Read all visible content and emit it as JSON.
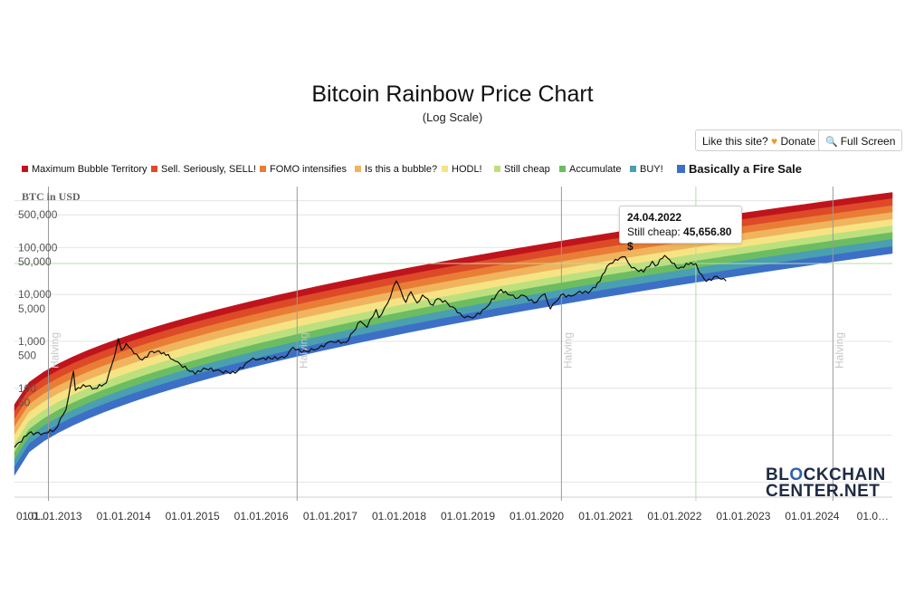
{
  "chart_data": {
    "type": "line",
    "title": "Bitcoin Rainbow Price Chart",
    "subtitle": "(Log Scale)",
    "ylabel": "BTC in USD",
    "y_scale": "log",
    "ylim": [
      0.5,
      2000000
    ],
    "xlim": [
      "2012-06-01",
      "2025-03-01"
    ],
    "grid": true,
    "legend_position": "top",
    "y_tick_labels": [
      "500,000",
      "100,000",
      "50,000",
      "10,000",
      "5,000",
      "1,000",
      "500",
      "100",
      "50"
    ],
    "y_tick_values": [
      500000,
      100000,
      50000,
      10000,
      5000,
      1000,
      500,
      100,
      50
    ],
    "y_gridlines": [
      1000000,
      500000,
      100000,
      10000,
      1000,
      100,
      10,
      1
    ],
    "x_tick_labels": [
      "01.0…",
      "01.01.2013",
      "01.01.2014",
      "01.01.2015",
      "01.01.2016",
      "01.01.2017",
      "01.01.2018",
      "01.01.2019",
      "01.01.2020",
      "01.01.2021",
      "01.01.2022",
      "01.01.2023",
      "01.01.2024",
      "01.0…"
    ],
    "x_tick_dates": [
      "2012-06-15",
      "2013-01-01",
      "2014-01-01",
      "2015-01-01",
      "2016-01-01",
      "2017-01-01",
      "2018-01-01",
      "2019-01-01",
      "2020-01-01",
      "2021-01-01",
      "2022-01-01",
      "2023-01-01",
      "2024-01-01",
      "2025-01-01"
    ],
    "halvings": [
      {
        "label": "Halving",
        "date": "2012-11-28"
      },
      {
        "label": "Halving",
        "date": "2016-07-09"
      },
      {
        "label": "Halving",
        "date": "2020-05-11"
      },
      {
        "label": "Halving",
        "date": "2024-04-20"
      }
    ],
    "bands": [
      {
        "name": "Maximum Bubble Territory",
        "color": "#c0141c",
        "top_value_2012": 45,
        "top_value_2025": 1500000
      },
      {
        "name": "Sell. Seriously, SELL!",
        "color": "#dd4a28",
        "top_value_2012": 32,
        "top_value_2025": 1100000
      },
      {
        "name": "FOMO intensifies",
        "color": "#ea7d36",
        "top_value_2012": 22,
        "top_value_2025": 780000
      },
      {
        "name": "Is this a bubble?",
        "color": "#f0b45e",
        "top_value_2012": 15,
        "top_value_2025": 560000
      },
      {
        "name": "HODL!",
        "color": "#f6e484",
        "top_value_2012": 10,
        "top_value_2025": 400000
      },
      {
        "name": "Still cheap",
        "color": "#bde07e",
        "top_value_2012": 6.5,
        "top_value_2025": 290000
      },
      {
        "name": "Accumulate",
        "color": "#6cbd62",
        "top_value_2012": 4.3,
        "top_value_2025": 210000
      },
      {
        "name": "BUY!",
        "color": "#4a9fb1",
        "top_value_2012": 3.0,
        "top_value_2025": 150000
      },
      {
        "name": "Basically a Fire Sale",
        "color": "#3c6fc6",
        "top_value_2012": 2.1,
        "top_value_2025": 105000,
        "bottom_value_2012": 1.4,
        "bottom_value_2025": 75000
      }
    ],
    "series": [
      {
        "name": "BTC price",
        "color": "#111111",
        "points": [
          [
            "2012-06-01",
            5.5
          ],
          [
            "2012-08-15",
            11
          ],
          [
            "2012-11-01",
            11
          ],
          [
            "2013-01-01",
            13
          ],
          [
            "2013-03-01",
            35
          ],
          [
            "2013-04-10",
            230
          ],
          [
            "2013-04-20",
            90
          ],
          [
            "2013-06-01",
            120
          ],
          [
            "2013-08-01",
            100
          ],
          [
            "2013-10-01",
            130
          ],
          [
            "2013-11-15",
            500
          ],
          [
            "2013-12-04",
            1150
          ],
          [
            "2013-12-20",
            650
          ],
          [
            "2014-01-15",
            900
          ],
          [
            "2014-02-25",
            550
          ],
          [
            "2014-04-10",
            400
          ],
          [
            "2014-06-01",
            620
          ],
          [
            "2014-08-01",
            580
          ],
          [
            "2014-10-01",
            380
          ],
          [
            "2015-01-15",
            200
          ],
          [
            "2015-03-01",
            270
          ],
          [
            "2015-06-01",
            230
          ],
          [
            "2015-08-15",
            210
          ],
          [
            "2015-11-05",
            400
          ],
          [
            "2016-01-01",
            430
          ],
          [
            "2016-05-01",
            450
          ],
          [
            "2016-06-17",
            750
          ],
          [
            "2016-08-01",
            580
          ],
          [
            "2016-11-01",
            720
          ],
          [
            "2017-01-05",
            1000
          ],
          [
            "2017-03-25",
            950
          ],
          [
            "2017-06-10",
            2700
          ],
          [
            "2017-07-15",
            2000
          ],
          [
            "2017-09-01",
            4800
          ],
          [
            "2017-09-15",
            3200
          ],
          [
            "2017-11-01",
            6500
          ],
          [
            "2017-12-17",
            19500
          ],
          [
            "2018-02-06",
            6800
          ],
          [
            "2018-03-05",
            11500
          ],
          [
            "2018-04-06",
            6600
          ],
          [
            "2018-05-05",
            9800
          ],
          [
            "2018-06-30",
            5900
          ],
          [
            "2018-07-25",
            8200
          ],
          [
            "2018-09-15",
            6500
          ],
          [
            "2018-11-20",
            4000
          ],
          [
            "2018-12-15",
            3200
          ],
          [
            "2019-02-08",
            3400
          ],
          [
            "2019-04-02",
            5000
          ],
          [
            "2019-06-26",
            12800
          ],
          [
            "2019-08-01",
            10000
          ],
          [
            "2019-09-25",
            8500
          ],
          [
            "2019-10-26",
            9500
          ],
          [
            "2019-12-17",
            6600
          ],
          [
            "2020-02-13",
            10300
          ],
          [
            "2020-03-13",
            4900
          ],
          [
            "2020-05-08",
            9800
          ],
          [
            "2020-07-01",
            9200
          ],
          [
            "2020-08-15",
            11800
          ],
          [
            "2020-10-01",
            10700
          ],
          [
            "2020-12-01",
            19000
          ],
          [
            "2021-01-08",
            40000
          ],
          [
            "2021-02-21",
            56000
          ],
          [
            "2021-04-14",
            63500
          ],
          [
            "2021-05-19",
            37000
          ],
          [
            "2021-07-20",
            30000
          ],
          [
            "2021-09-05",
            51000
          ],
          [
            "2021-09-21",
            40500
          ],
          [
            "2021-11-10",
            68000
          ],
          [
            "2021-12-18",
            46500
          ],
          [
            "2022-01-24",
            36000
          ],
          [
            "2022-03-29",
            47500
          ],
          [
            "2022-04-24",
            45656.8
          ],
          [
            "2022-05-12",
            29000
          ],
          [
            "2022-06-18",
            19000
          ],
          [
            "2022-08-13",
            24400
          ],
          [
            "2022-10-01",
            19300
          ]
        ]
      }
    ],
    "tooltip": {
      "date": "24.04.2022",
      "label": "Still cheap:",
      "value": "45,656.80 $"
    }
  },
  "controls": {
    "like_text": "Like this site?",
    "like_heart": "♥",
    "donate_label": "Donate",
    "fullscreen_icon": "magnifier-icon",
    "fullscreen_label": "Full Screen"
  },
  "watermark": {
    "line1_a": "BL",
    "line1_b": "O",
    "line1_c": "CKCHAIN",
    "line2": "CENTER.NET"
  }
}
